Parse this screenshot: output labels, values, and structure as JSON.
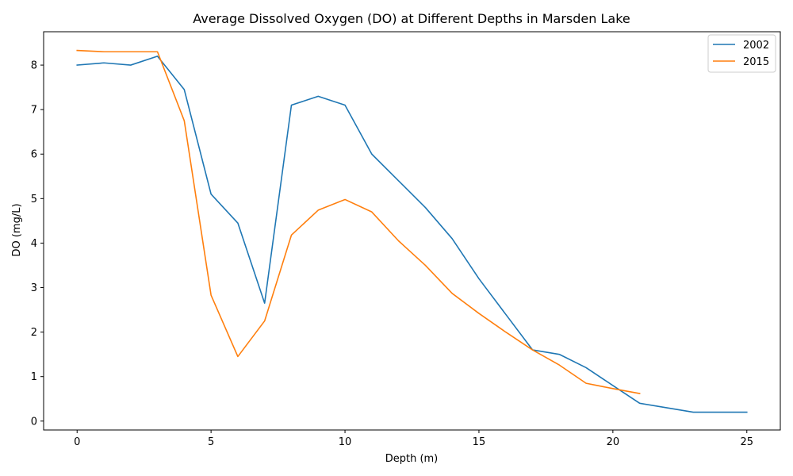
{
  "chart_data": {
    "type": "line",
    "title": "Average Dissolved Oxygen (DO) at Different Depths in Marsden Lake",
    "xlabel": "Depth (m)",
    "ylabel": "DO (mg/L)",
    "xlim": [
      -1.25,
      26.25
    ],
    "ylim": [
      -0.2,
      8.75
    ],
    "xticks": [
      0,
      5,
      10,
      15,
      20,
      25
    ],
    "yticks": [
      0,
      1,
      2,
      3,
      4,
      5,
      6,
      7,
      8
    ],
    "grid": false,
    "legend_position": "top-right",
    "series": [
      {
        "name": "2002",
        "color": "#1f77b4",
        "x": [
          0,
          1,
          2,
          3,
          4,
          5,
          6,
          7,
          8,
          9,
          10,
          11,
          12,
          13,
          14,
          15,
          16,
          17,
          18,
          19,
          20,
          21,
          22,
          23,
          24,
          25
        ],
        "values": [
          8.0,
          8.05,
          8.0,
          8.2,
          7.45,
          5.1,
          4.45,
          2.65,
          7.1,
          7.3,
          7.1,
          6.0,
          5.4,
          4.8,
          4.1,
          3.2,
          2.4,
          1.6,
          1.5,
          1.2,
          0.8,
          0.4,
          0.3,
          0.2,
          0.2,
          0.2
        ]
      },
      {
        "name": "2015",
        "color": "#ff7f0e",
        "x": [
          0,
          1,
          2,
          3,
          4,
          5,
          6,
          7,
          8,
          9,
          10,
          11,
          12,
          13,
          14,
          15,
          16,
          17,
          18,
          19,
          20,
          21
        ],
        "values": [
          8.33,
          8.3,
          8.3,
          8.3,
          6.75,
          2.83,
          1.45,
          2.25,
          4.18,
          4.74,
          4.98,
          4.7,
          4.05,
          3.5,
          2.87,
          2.42,
          2.0,
          1.6,
          1.26,
          0.85,
          0.73,
          0.62
        ]
      }
    ]
  }
}
